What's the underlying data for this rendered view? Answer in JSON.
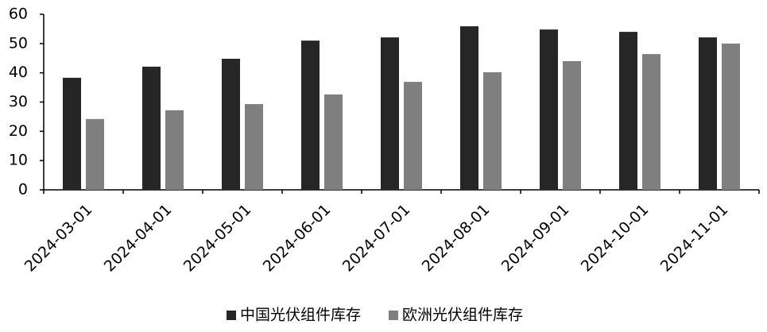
{
  "chart_data": {
    "type": "bar",
    "categories": [
      "2024-03-01",
      "2024-04-01",
      "2024-05-01",
      "2024-06-01",
      "2024-07-01",
      "2024-08-01",
      "2024-09-01",
      "2024-10-01",
      "2024-11-01"
    ],
    "series": [
      {
        "name": "中国光伏组件库存",
        "color": "#262626",
        "values": [
          38.3,
          42.1,
          44.8,
          51.0,
          52.1,
          55.9,
          54.8,
          54.0,
          52.1
        ]
      },
      {
        "name": "欧洲光伏组件库存",
        "color": "#7f7f7f",
        "values": [
          24.2,
          27.2,
          29.3,
          32.6,
          36.9,
          40.2,
          44.0,
          46.4,
          50.0
        ]
      }
    ],
    "ylim": [
      0,
      60
    ],
    "yticks": [
      0,
      10,
      20,
      30,
      40,
      50,
      60
    ],
    "grid": false,
    "legend": "bottom"
  }
}
